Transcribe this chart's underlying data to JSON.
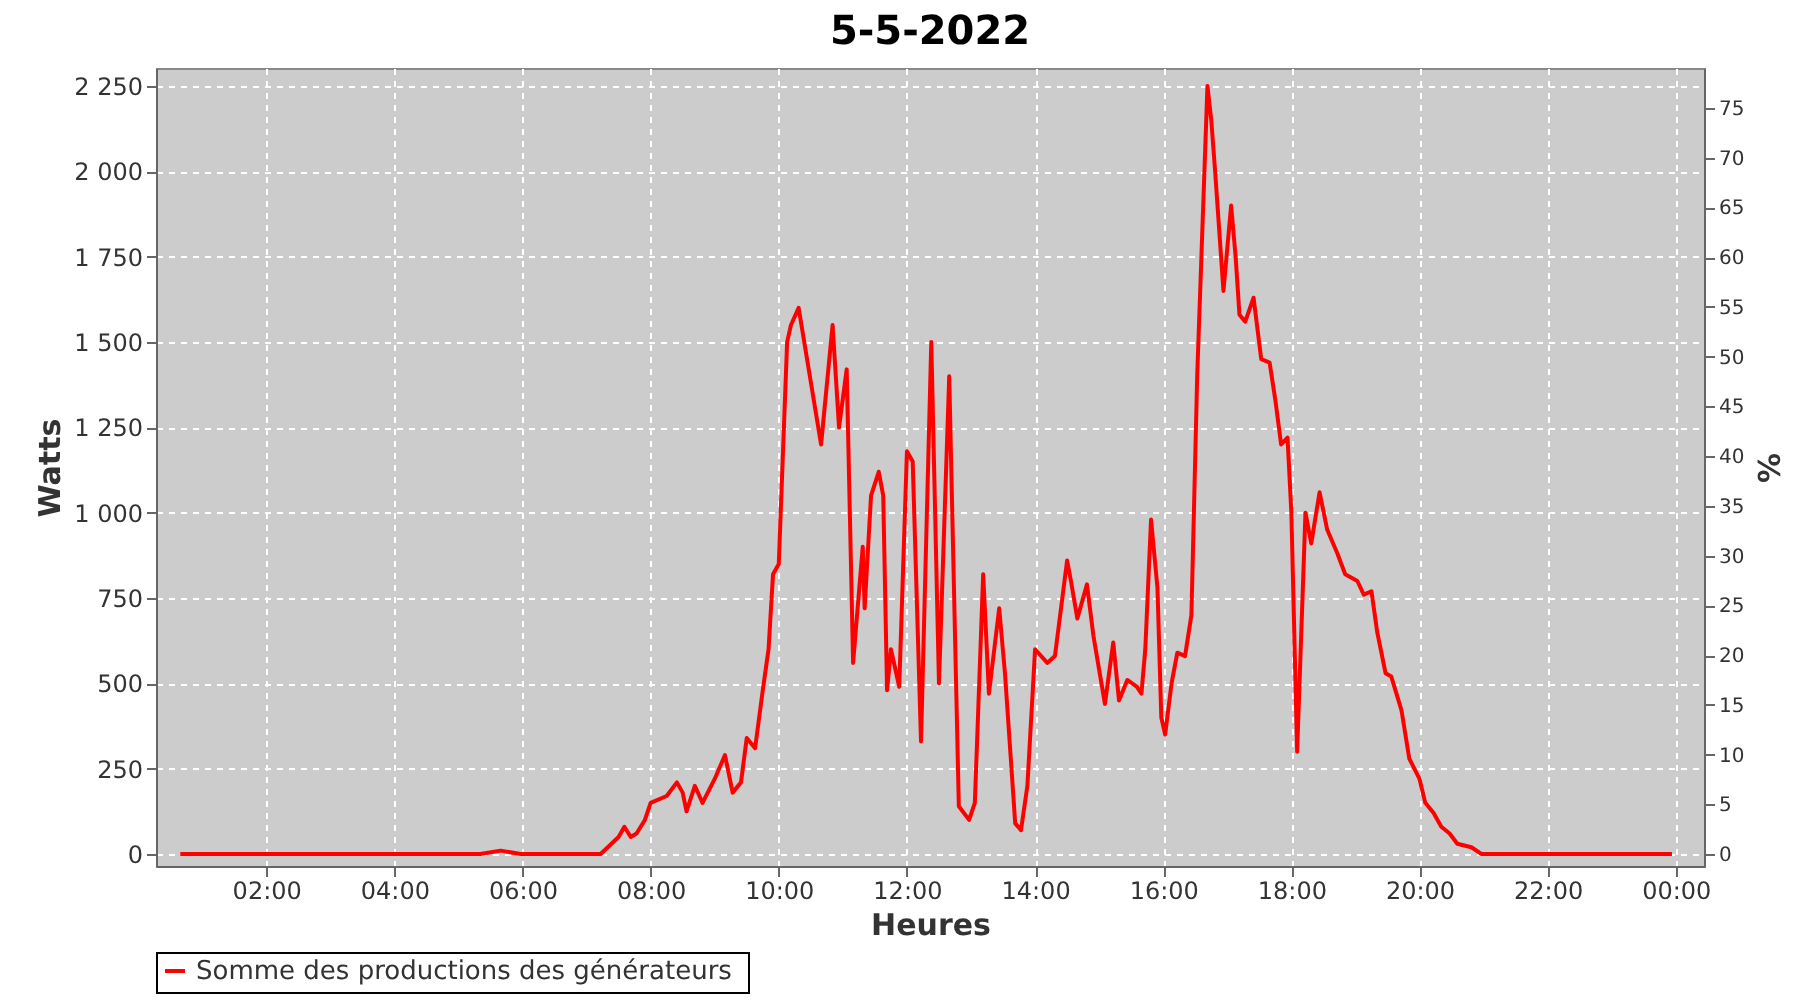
{
  "chart_data": {
    "type": "line",
    "title": "5-5-2022",
    "xlabel": "Heures",
    "ylabel": "Watts",
    "y2label": "%",
    "x": [
      0.66,
      5.34,
      5.66,
      5.97,
      7.22,
      7.5,
      7.59,
      7.69,
      7.78,
      7.91,
      8.0,
      8.25,
      8.41,
      8.5,
      8.56,
      8.69,
      8.81,
      9.0,
      9.16,
      9.28,
      9.41,
      9.5,
      9.63,
      9.75,
      9.84,
      9.91,
      10.0,
      10.06,
      10.13,
      10.19,
      10.31,
      10.66,
      10.84,
      10.94,
      11.06,
      11.16,
      11.31,
      11.34,
      11.44,
      11.56,
      11.63,
      11.69,
      11.75,
      11.88,
      12.0,
      12.09,
      12.22,
      12.38,
      12.5,
      12.66,
      12.81,
      12.97,
      13.06,
      13.19,
      13.28,
      13.44,
      13.53,
      13.69,
      13.78,
      13.88,
      14.0,
      14.19,
      14.31,
      14.5,
      14.56,
      14.66,
      14.81,
      14.91,
      15.09,
      15.22,
      15.31,
      15.44,
      15.59,
      15.66,
      15.72,
      15.81,
      15.91,
      15.97,
      16.03,
      16.13,
      16.22,
      16.34,
      16.44,
      16.53,
      16.69,
      16.75,
      16.81,
      16.94,
      17.06,
      17.13,
      17.19,
      17.28,
      17.41,
      17.53,
      17.66,
      17.75,
      17.84,
      17.94,
      18.0,
      18.09,
      18.22,
      18.31,
      18.44,
      18.56,
      18.72,
      18.84,
      19.03,
      19.13,
      19.25,
      19.34,
      19.47,
      19.56,
      19.72,
      19.84,
      20.0,
      20.09,
      20.22,
      20.34,
      20.47,
      20.59,
      20.81,
      20.97,
      23.94
    ],
    "series": [
      {
        "name": "Somme des productions des  générateurs",
        "color": "#ff0000",
        "values": [
          0,
          0,
          10,
          0,
          0,
          50,
          80,
          50,
          60,
          100,
          150,
          170,
          210,
          180,
          125,
          200,
          150,
          220,
          290,
          180,
          210,
          340,
          310,
          480,
          600,
          820,
          850,
          1150,
          1500,
          1550,
          1600,
          1200,
          1550,
          1250,
          1420,
          560,
          900,
          720,
          1050,
          1120,
          1050,
          480,
          600,
          490,
          1180,
          1150,
          330,
          1500,
          500,
          1400,
          140,
          100,
          150,
          820,
          470,
          720,
          530,
          90,
          70,
          200,
          600,
          560,
          580,
          860,
          800,
          690,
          790,
          640,
          440,
          620,
          450,
          510,
          490,
          470,
          600,
          980,
          780,
          400,
          350,
          500,
          590,
          580,
          700,
          1400,
          2250,
          2150,
          2000,
          1650,
          1900,
          1750,
          1580,
          1560,
          1630,
          1450,
          1440,
          1330,
          1200,
          1220,
          1000,
          300,
          1000,
          910,
          1060,
          950,
          880,
          820,
          800,
          760,
          770,
          650,
          530,
          520,
          420,
          280,
          220,
          150,
          120,
          80,
          60,
          30,
          20,
          0,
          0
        ]
      }
    ],
    "xlim": [
      0.28,
      24.44
    ],
    "ylim": [
      -35,
      2303
    ],
    "y2lim": [
      -1.2,
      79
    ],
    "xticks": [
      {
        "value": 2,
        "label": "02:00"
      },
      {
        "value": 4,
        "label": "04:00"
      },
      {
        "value": 6,
        "label": "06:00"
      },
      {
        "value": 8,
        "label": "08:00"
      },
      {
        "value": 10,
        "label": "10:00"
      },
      {
        "value": 12,
        "label": "12:00"
      },
      {
        "value": 14,
        "label": "14:00"
      },
      {
        "value": 16,
        "label": "16:00"
      },
      {
        "value": 18,
        "label": "18:00"
      },
      {
        "value": 20,
        "label": "20:00"
      },
      {
        "value": 22,
        "label": "22:00"
      },
      {
        "value": 24,
        "label": "00:00"
      }
    ],
    "yticks": [
      0,
      250,
      500,
      750,
      {
        "value": 1000,
        "label": "1 000"
      },
      {
        "value": 1250,
        "label": "1 250"
      },
      {
        "value": 1500,
        "label": "1 500"
      },
      {
        "value": 1750,
        "label": "1 750"
      },
      {
        "value": 2000,
        "label": "2 000"
      },
      {
        "value": 2250,
        "label": "2 250"
      }
    ],
    "y2ticks": [
      0,
      5,
      10,
      15,
      20,
      25,
      30,
      35,
      40,
      45,
      50,
      55,
      60,
      65,
      70,
      75
    ],
    "grid": true,
    "legend": "bottom"
  }
}
